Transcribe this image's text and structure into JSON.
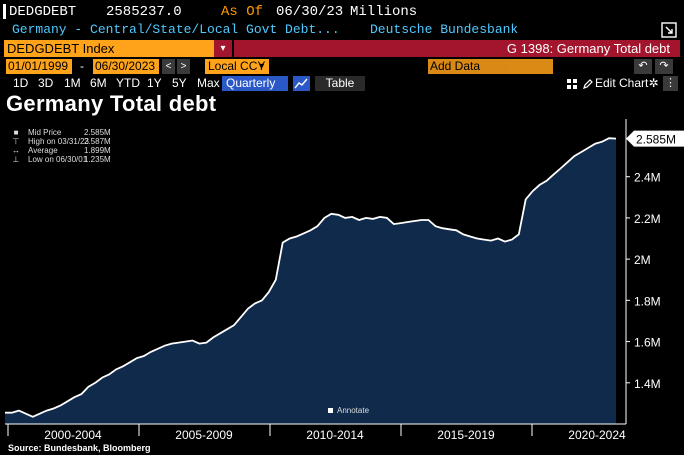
{
  "header": {
    "ticker": "DEDGDEBT",
    "last_value": "2585237.0",
    "as_of_label": "As Of",
    "as_of_date": "06/30/23",
    "units": "Millions",
    "description": "Germany - Central/State/Local Govt Debt...",
    "source": "Deutsche Bundesbank"
  },
  "security_bar": {
    "security": "DEDGDEBT Index",
    "dropdown_glyph": "▾",
    "chart_title": "G 1398: Germany Total debt"
  },
  "controls": {
    "start_date": "01/01/1999",
    "end_date": "06/30/2023",
    "currency": "Local CCY",
    "add_data_placeholder": "Add Data",
    "periods": [
      "1D",
      "3D",
      "1M",
      "6M",
      "YTD",
      "1Y",
      "5Y",
      "Max"
    ],
    "frequency": "Quarterly",
    "table_label": "Table",
    "edit_chart_label": "Edit Chart"
  },
  "chart_data": {
    "type": "area",
    "title": "Germany Total debt",
    "source_note": "Source: Bundesbank, Bloomberg",
    "y_labels": [
      "1.4M",
      "1.6M",
      "1.8M",
      "2M",
      "2.2M",
      "2.4M"
    ],
    "last_value_label": "2.585M",
    "x_labels": [
      "2000-2004",
      "2005-2009",
      "2010-2014",
      "2015-2019",
      "2020-2024"
    ],
    "ylim": [
      1.2,
      2.68
    ],
    "grid": false,
    "legend": [
      {
        "symbol": "■",
        "label": "Mid Price",
        "value": "2.585M"
      },
      {
        "symbol": "⊤",
        "label": "High on 03/31/23",
        "value": "2.587M"
      },
      {
        "symbol": "↔",
        "label": "Average",
        "value": "1.899M"
      },
      {
        "symbol": "⊥",
        "label": "Low on 06/30/01",
        "value": "1.235M"
      }
    ],
    "annotate_label": "Annotate",
    "series": [
      {
        "name": "Mid Price",
        "values": [
          1.255,
          1.255,
          1.265,
          1.25,
          1.235,
          1.25,
          1.265,
          1.275,
          1.29,
          1.31,
          1.33,
          1.345,
          1.38,
          1.4,
          1.425,
          1.44,
          1.465,
          1.48,
          1.5,
          1.52,
          1.53,
          1.55,
          1.565,
          1.58,
          1.59,
          1.595,
          1.6,
          1.605,
          1.59,
          1.595,
          1.62,
          1.64,
          1.66,
          1.68,
          1.72,
          1.76,
          1.785,
          1.8,
          1.84,
          1.9,
          2.08,
          2.1,
          2.11,
          2.125,
          2.14,
          2.16,
          2.2,
          2.22,
          2.215,
          2.2,
          2.205,
          2.19,
          2.2,
          2.195,
          2.205,
          2.2,
          2.17,
          2.175,
          2.18,
          2.185,
          2.19,
          2.19,
          2.16,
          2.15,
          2.145,
          2.14,
          2.12,
          2.11,
          2.1,
          2.095,
          2.09,
          2.1,
          2.085,
          2.095,
          2.12,
          2.29,
          2.33,
          2.36,
          2.38,
          2.41,
          2.44,
          2.47,
          2.5,
          2.52,
          2.54,
          2.56,
          2.57,
          2.587,
          2.585
        ]
      }
    ]
  }
}
